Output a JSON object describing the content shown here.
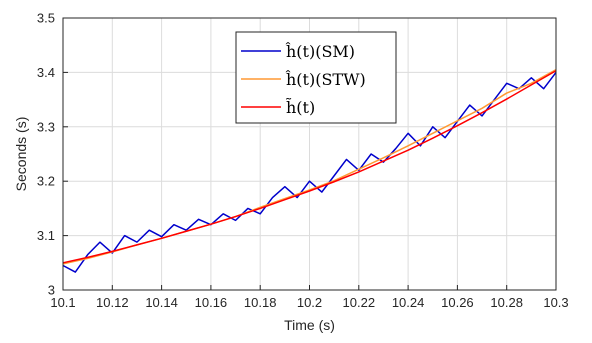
{
  "chart_data": {
    "type": "line",
    "xlabel": "Time (s)",
    "ylabel": "Seconds (s)",
    "xlim": [
      10.1,
      10.3
    ],
    "ylim": [
      3.0,
      3.5
    ],
    "grid": true,
    "legend_position": "top-center",
    "x_ticks": [
      "10.1",
      "10.12",
      "10.14",
      "10.16",
      "10.18",
      "10.2",
      "10.22",
      "10.24",
      "10.26",
      "10.28",
      "10.3"
    ],
    "y_ticks": [
      "3",
      "3.1",
      "3.2",
      "3.3",
      "3.4",
      "3.5"
    ],
    "series": [
      {
        "name": "ĥ(t)(SM)",
        "color": "#0000cc",
        "x": [
          10.1,
          10.105,
          10.11,
          10.115,
          10.12,
          10.125,
          10.13,
          10.135,
          10.14,
          10.145,
          10.15,
          10.155,
          10.16,
          10.165,
          10.17,
          10.175,
          10.18,
          10.185,
          10.19,
          10.195,
          10.2,
          10.205,
          10.21,
          10.215,
          10.22,
          10.225,
          10.23,
          10.235,
          10.24,
          10.245,
          10.25,
          10.255,
          10.26,
          10.265,
          10.27,
          10.275,
          10.28,
          10.285,
          10.29,
          10.295,
          10.3
        ],
        "y": [
          3.045,
          3.033,
          3.065,
          3.088,
          3.068,
          3.1,
          3.088,
          3.11,
          3.098,
          3.12,
          3.11,
          3.13,
          3.12,
          3.14,
          3.128,
          3.15,
          3.14,
          3.17,
          3.19,
          3.17,
          3.2,
          3.18,
          3.21,
          3.24,
          3.22,
          3.25,
          3.235,
          3.26,
          3.288,
          3.265,
          3.3,
          3.28,
          3.31,
          3.34,
          3.32,
          3.35,
          3.38,
          3.37,
          3.39,
          3.37,
          3.4
        ]
      },
      {
        "name": "ĥ(t)(STW)",
        "color": "#ff9933",
        "x": [
          10.1,
          10.11,
          10.12,
          10.13,
          10.14,
          10.15,
          10.16,
          10.17,
          10.18,
          10.19,
          10.2,
          10.21,
          10.22,
          10.23,
          10.24,
          10.25,
          10.26,
          10.27,
          10.28,
          10.29,
          10.3
        ],
        "y": [
          3.048,
          3.058,
          3.07,
          3.083,
          3.095,
          3.108,
          3.121,
          3.135,
          3.152,
          3.168,
          3.184,
          3.201,
          3.222,
          3.243,
          3.265,
          3.288,
          3.311,
          3.334,
          3.362,
          3.38,
          3.405
        ]
      },
      {
        "name": "h̃(t)",
        "color": "#ff0000",
        "x": [
          10.1,
          10.11,
          10.12,
          10.13,
          10.14,
          10.15,
          10.16,
          10.17,
          10.18,
          10.19,
          10.2,
          10.21,
          10.22,
          10.23,
          10.24,
          10.25,
          10.26,
          10.27,
          10.28,
          10.29,
          10.3
        ],
        "y": [
          3.05,
          3.06,
          3.071,
          3.083,
          3.095,
          3.108,
          3.121,
          3.135,
          3.15,
          3.166,
          3.182,
          3.199,
          3.217,
          3.237,
          3.257,
          3.279,
          3.302,
          3.326,
          3.351,
          3.377,
          3.403
        ]
      }
    ]
  }
}
